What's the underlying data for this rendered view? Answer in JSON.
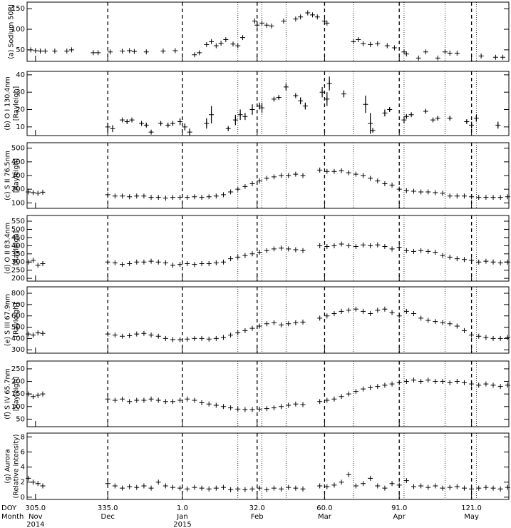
{
  "reference_lines": {
    "dashed": [
      335,
      366,
      397,
      425,
      456,
      486
    ],
    "dotted": [
      389,
      399,
      409,
      437,
      458,
      475,
      488
    ]
  },
  "chart_data": [
    {
      "type": "scatter",
      "y_label": [
        "(a) Sodium 50RJ"
      ],
      "xlim": [
        301.5,
        501.5
      ],
      "ylim": [
        22,
        166
      ],
      "yticks": [
        50,
        100,
        150
      ],
      "x": [
        303,
        305,
        307,
        309,
        313,
        318,
        320,
        329,
        331,
        336,
        341,
        344,
        346,
        351,
        358,
        363,
        371,
        373,
        376,
        378,
        380,
        382,
        384,
        387,
        389,
        391,
        396,
        397,
        399,
        401,
        403,
        408,
        413,
        415,
        418,
        420,
        422,
        425,
        426,
        437,
        439,
        441,
        444,
        447,
        451,
        454,
        458,
        459,
        464,
        467,
        472,
        475,
        477,
        480,
        490,
        496,
        499
      ],
      "values": [
        50,
        48,
        47,
        47,
        47,
        47,
        50,
        43,
        43,
        45,
        47,
        48,
        46,
        45,
        47,
        48,
        38,
        43,
        63,
        70,
        60,
        66,
        75,
        64,
        60,
        80,
        120,
        110,
        115,
        110,
        108,
        120,
        125,
        130,
        140,
        135,
        130,
        120,
        115,
        70,
        75,
        65,
        63,
        65,
        60,
        55,
        45,
        40,
        30,
        45,
        30,
        45,
        42,
        42,
        35,
        32,
        32
      ]
    },
    {
      "type": "scatter",
      "y_label": [
        "(b) O I 130.4nm",
        "[Rayleigh]"
      ],
      "xlim": [
        301.5,
        501.5
      ],
      "ylim": [
        5,
        42
      ],
      "yticks": [
        10,
        20,
        30,
        40
      ],
      "x": [
        335,
        337,
        341,
        343,
        345,
        349,
        351,
        353,
        357,
        360,
        362,
        365,
        367,
        369,
        376,
        378,
        385,
        388,
        390,
        392,
        395,
        398,
        399,
        404,
        406,
        409,
        413,
        415,
        417,
        424,
        426,
        427,
        433,
        442,
        444,
        445,
        450,
        452,
        458,
        459,
        461,
        467,
        470,
        472,
        477,
        484,
        486,
        488,
        497
      ],
      "values": [
        10,
        9,
        14,
        13,
        14,
        12,
        11,
        7,
        12,
        11,
        12,
        13,
        10,
        7,
        12,
        17,
        9,
        14,
        17,
        16,
        20,
        22,
        21,
        26,
        27,
        33,
        28,
        25,
        22,
        30,
        26,
        35,
        29,
        23,
        12,
        8,
        18,
        20,
        14,
        16,
        17,
        19,
        14,
        15,
        15,
        13,
        11,
        15,
        11
      ],
      "errors": [
        2,
        2,
        1,
        1,
        1,
        1,
        1,
        1,
        1,
        1,
        1,
        2,
        2,
        2,
        3,
        5,
        1,
        3,
        3,
        2,
        3,
        2,
        3,
        1,
        1,
        2,
        1,
        2,
        2,
        3,
        4,
        4,
        2,
        5,
        6,
        1,
        2,
        1,
        2,
        1,
        1,
        1,
        1,
        1,
        1,
        1,
        2,
        2,
        2
      ]
    },
    {
      "type": "scatter",
      "y_label": [
        "(c) S II 76.5nm",
        "[Rayleigh]"
      ],
      "xlim": [
        301.5,
        501.5
      ],
      "ylim": [
        60,
        540
      ],
      "yticks": [
        100,
        200,
        300,
        400,
        500
      ],
      "x": [
        302,
        304,
        306,
        308,
        335,
        338,
        341,
        344,
        347,
        350,
        353,
        356,
        359,
        362,
        365,
        368,
        371,
        374,
        377,
        380,
        383,
        386,
        389,
        392,
        395,
        398,
        401,
        404,
        407,
        410,
        413,
        416,
        423,
        426,
        429,
        432,
        435,
        438,
        441,
        444,
        447,
        450,
        453,
        456,
        459,
        462,
        465,
        468,
        471,
        474,
        477,
        480,
        483,
        486,
        489,
        492,
        495,
        498,
        501
      ],
      "values": [
        180,
        175,
        170,
        178,
        160,
        150,
        150,
        145,
        150,
        150,
        140,
        140,
        135,
        140,
        140,
        140,
        145,
        140,
        145,
        150,
        160,
        180,
        200,
        220,
        240,
        260,
        280,
        290,
        300,
        300,
        310,
        300,
        340,
        330,
        330,
        335,
        320,
        310,
        300,
        280,
        260,
        240,
        230,
        200,
        190,
        185,
        180,
        180,
        175,
        170,
        150,
        150,
        150,
        145,
        140,
        140,
        140,
        140,
        145
      ]
    },
    {
      "type": "scatter",
      "y_label": [
        "(d) O II 83.4nm",
        "[Rayleigh]"
      ],
      "xlim": [
        301.5,
        501.5
      ],
      "ylim": [
        183,
        585
      ],
      "yticks": [
        200,
        250,
        300,
        350,
        400,
        450,
        500,
        550
      ],
      "x": [
        302,
        304,
        306,
        308,
        335,
        338,
        341,
        344,
        347,
        350,
        353,
        356,
        359,
        362,
        365,
        368,
        371,
        374,
        377,
        380,
        383,
        386,
        389,
        392,
        395,
        398,
        401,
        404,
        407,
        410,
        413,
        416,
        423,
        426,
        429,
        432,
        435,
        438,
        441,
        444,
        447,
        450,
        453,
        456,
        459,
        462,
        465,
        468,
        471,
        474,
        477,
        480,
        483,
        486,
        489,
        492,
        495,
        498,
        501
      ],
      "values": [
        300,
        310,
        280,
        290,
        300,
        295,
        285,
        290,
        300,
        300,
        305,
        300,
        295,
        280,
        285,
        290,
        285,
        290,
        290,
        295,
        300,
        320,
        330,
        340,
        350,
        360,
        370,
        380,
        385,
        380,
        375,
        370,
        400,
        395,
        400,
        410,
        400,
        395,
        405,
        400,
        405,
        395,
        380,
        390,
        370,
        365,
        370,
        365,
        360,
        340,
        330,
        320,
        315,
        310,
        300,
        305,
        300,
        295,
        300
      ]
    },
    {
      "type": "scatter",
      "y_label": [
        "(e) S III 67.9nm",
        "[Rayleigh]"
      ],
      "xlim": [
        301.5,
        501.5
      ],
      "ylim": [
        270,
        857
      ],
      "yticks": [
        300,
        400,
        500,
        600,
        700,
        800
      ],
      "x": [
        302,
        304,
        306,
        308,
        335,
        338,
        341,
        344,
        347,
        350,
        353,
        356,
        359,
        362,
        365,
        368,
        371,
        374,
        377,
        380,
        383,
        386,
        389,
        392,
        395,
        398,
        401,
        404,
        407,
        410,
        413,
        416,
        423,
        426,
        429,
        432,
        435,
        438,
        441,
        444,
        447,
        450,
        453,
        456,
        459,
        462,
        465,
        468,
        471,
        474,
        477,
        480,
        483,
        486,
        489,
        492,
        495,
        498,
        501
      ],
      "values": [
        440,
        430,
        450,
        445,
        440,
        430,
        420,
        425,
        440,
        445,
        430,
        420,
        400,
        390,
        390,
        395,
        400,
        400,
        395,
        400,
        410,
        430,
        450,
        470,
        490,
        510,
        530,
        540,
        520,
        530,
        540,
        545,
        580,
        600,
        620,
        640,
        650,
        660,
        640,
        620,
        650,
        660,
        630,
        600,
        640,
        620,
        580,
        560,
        550,
        540,
        530,
        510,
        470,
        430,
        420,
        410,
        400,
        400,
        410
      ]
    },
    {
      "type": "scatter",
      "y_label": [
        "(f) S IV 65.7nm",
        "[Rayleigh]"
      ],
      "xlim": [
        301.5,
        501.5
      ],
      "ylim": [
        20,
        281
      ],
      "yticks": [
        50,
        100,
        150,
        200,
        250
      ],
      "x": [
        302,
        304,
        306,
        308,
        335,
        338,
        341,
        344,
        347,
        350,
        353,
        356,
        359,
        362,
        365,
        368,
        371,
        374,
        377,
        380,
        383,
        386,
        389,
        392,
        395,
        398,
        401,
        404,
        407,
        410,
        413,
        416,
        423,
        426,
        429,
        432,
        435,
        438,
        441,
        444,
        447,
        450,
        453,
        456,
        459,
        462,
        465,
        468,
        471,
        474,
        477,
        480,
        483,
        486,
        489,
        492,
        495,
        498,
        501
      ],
      "values": [
        150,
        140,
        145,
        150,
        130,
        125,
        130,
        120,
        125,
        125,
        130,
        125,
        120,
        120,
        125,
        130,
        125,
        115,
        110,
        105,
        100,
        95,
        90,
        88,
        88,
        90,
        92,
        95,
        100,
        105,
        110,
        108,
        120,
        125,
        130,
        140,
        150,
        160,
        170,
        175,
        180,
        185,
        190,
        195,
        200,
        205,
        200,
        205,
        200,
        200,
        195,
        200,
        195,
        190,
        185,
        190,
        185,
        180,
        185
      ]
    },
    {
      "type": "scatter",
      "y_label": [
        "(g) Aurora",
        "(Relative intensity)"
      ],
      "xlim": [
        301.5,
        501.5
      ],
      "ylim": [
        -0.3,
        8.5
      ],
      "yticks": [
        0,
        2,
        4,
        6,
        8
      ],
      "x": [
        302,
        304,
        306,
        308,
        335,
        338,
        341,
        344,
        347,
        350,
        353,
        356,
        359,
        362,
        365,
        368,
        371,
        374,
        377,
        380,
        383,
        386,
        389,
        392,
        395,
        398,
        401,
        404,
        407,
        410,
        413,
        416,
        423,
        426,
        429,
        432,
        435,
        438,
        441,
        444,
        447,
        450,
        453,
        456,
        459,
        462,
        465,
        468,
        471,
        474,
        477,
        480,
        483,
        486,
        489,
        492,
        495,
        498,
        501
      ],
      "values": [
        2.5,
        2,
        1.8,
        1.5,
        1.8,
        1.5,
        1.2,
        1.4,
        1.3,
        1.5,
        1.2,
        2.0,
        1.5,
        1.3,
        1.2,
        1.1,
        1.3,
        1.2,
        1.1,
        1.2,
        1.3,
        1.0,
        1.1,
        1.0,
        1.1,
        1.2,
        1.0,
        1.2,
        1.1,
        1.3,
        1.2,
        1.1,
        1.5,
        1.4,
        1.6,
        2.0,
        3.0,
        1.5,
        1.8,
        2.5,
        1.5,
        1.2,
        1.8,
        1.6,
        2.2,
        1.4,
        1.5,
        1.3,
        1.5,
        1.2,
        1.3,
        1.4,
        1.2,
        1.1,
        1.2,
        1.3,
        1.2,
        1.1,
        1.3
      ],
      "x_row_labels": [
        "DOY",
        "Month"
      ],
      "xticks": [
        {
          "value": 305,
          "label": "305.0"
        },
        {
          "value": 335,
          "label": "335.0"
        },
        {
          "value": 366,
          "label": "1.0"
        },
        {
          "value": 397,
          "label": "32.0"
        },
        {
          "value": 425,
          "label": "60.0"
        },
        {
          "value": 456,
          "label": "91.0"
        },
        {
          "value": 486,
          "label": "121.0"
        }
      ],
      "month_labels": [
        "Nov",
        "Dec",
        "Jan",
        "Feb",
        "Mar",
        "Apr",
        "May"
      ],
      "year_labels": [
        {
          "value": 305,
          "label": "2014"
        },
        {
          "value": 366,
          "label": "2015"
        }
      ]
    }
  ]
}
